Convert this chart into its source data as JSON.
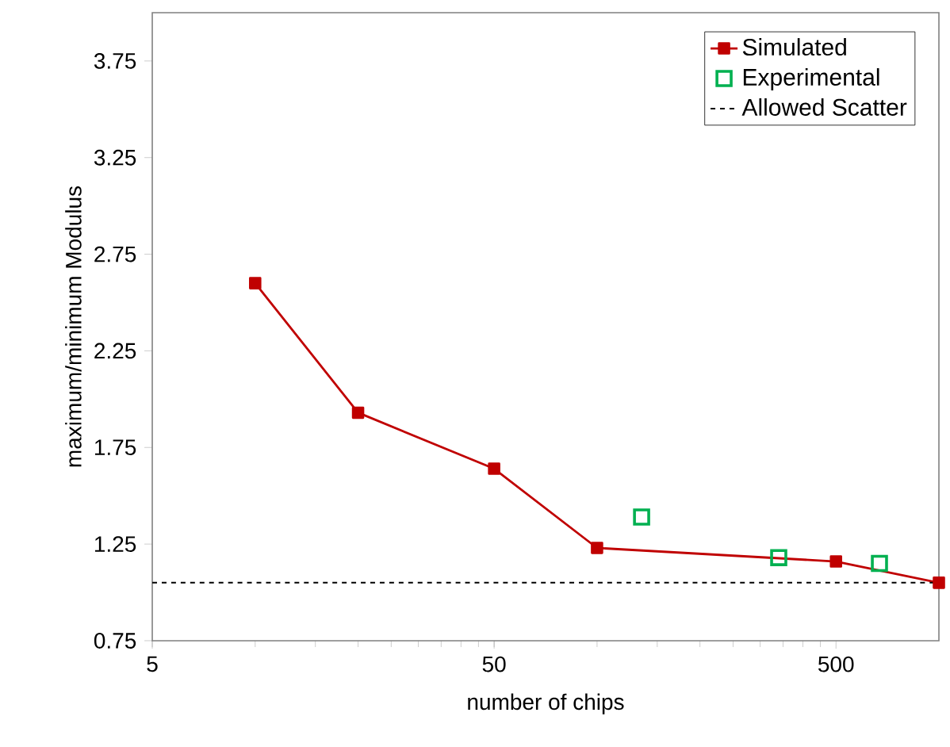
{
  "chart_data": {
    "type": "line",
    "xlabel": "number of chips",
    "ylabel": "maximum/minimum Modulus",
    "log": "x",
    "xlim": [
      5,
      1000
    ],
    "xticks": [
      5,
      50,
      500
    ],
    "ylim": [
      0.75,
      4.0
    ],
    "yticks": [
      0.75,
      1.25,
      1.75,
      2.25,
      2.75,
      3.25,
      3.75
    ],
    "grid": false,
    "legend": "top right",
    "series": [
      {
        "name": "Simulated",
        "marker": "square",
        "color": "#c00000",
        "x": [
          10,
          20,
          50,
          100,
          500,
          1000
        ],
        "values": [
          2.6,
          1.93,
          1.64,
          1.23,
          1.16,
          1.05
        ]
      },
      {
        "name": "Experimental",
        "type": "scatter",
        "marker": "square",
        "color": "#00b050",
        "x": [
          135,
          340,
          670
        ],
        "values": [
          1.39,
          1.18,
          1.15
        ]
      }
    ],
    "ref_lines": [
      {
        "axis": "y",
        "value": 1.05,
        "label": "Allowed Scatter",
        "color": "#000000",
        "line_style": "dashed"
      }
    ]
  }
}
